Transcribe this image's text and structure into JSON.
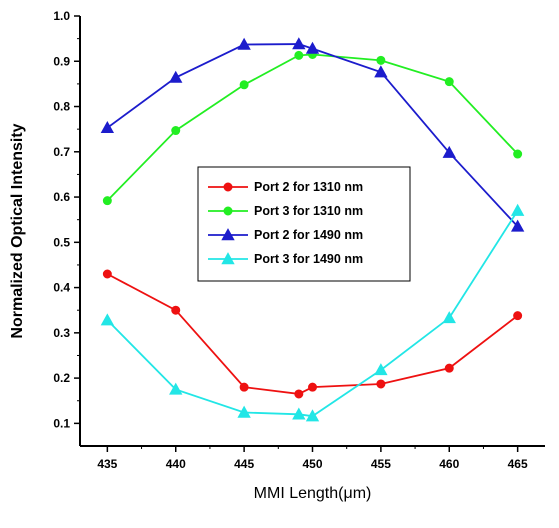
{
  "chart_data": {
    "type": "line",
    "title": "",
    "xlabel": "MMI Length(μm)",
    "ylabel": "Normalized Optical Intensity",
    "xlim": [
      433,
      467
    ],
    "ylim": [
      0.05,
      1.0
    ],
    "xticks": [
      435,
      440,
      445,
      450,
      455,
      460,
      465
    ],
    "yticks": [
      0.1,
      0.2,
      0.3,
      0.4,
      0.5,
      0.6,
      0.7,
      0.8,
      0.9,
      1.0
    ],
    "grid": false,
    "legend_position": "center",
    "series": [
      {
        "name": "Port 2 for 1310 nm",
        "color": "#ee1111",
        "marker": "circle",
        "x": [
          435,
          440,
          445,
          449,
          450,
          455,
          460,
          465
        ],
        "y": [
          0.43,
          0.35,
          0.18,
          0.165,
          0.18,
          0.187,
          0.222,
          0.338
        ]
      },
      {
        "name": "Port 3 for 1310 nm",
        "color": "#22ee22",
        "marker": "circle",
        "x": [
          435,
          440,
          445,
          449,
          450,
          455,
          460,
          465
        ],
        "y": [
          0.592,
          0.747,
          0.848,
          0.913,
          0.915,
          0.902,
          0.855,
          0.695
        ]
      },
      {
        "name": "Port 2 for 1490 nm",
        "color": "#1c1ccc",
        "marker": "triangle",
        "x": [
          435,
          440,
          445,
          449,
          450,
          455,
          460,
          465
        ],
        "y": [
          0.753,
          0.864,
          0.937,
          0.938,
          0.928,
          0.876,
          0.698,
          0.535
        ]
      },
      {
        "name": "Port 3 for 1490 nm",
        "color": "#22e6e6",
        "marker": "triangle",
        "x": [
          435,
          440,
          445,
          449,
          450,
          455,
          460,
          465
        ],
        "y": [
          0.328,
          0.175,
          0.124,
          0.12,
          0.116,
          0.218,
          0.333,
          0.57
        ]
      }
    ]
  }
}
